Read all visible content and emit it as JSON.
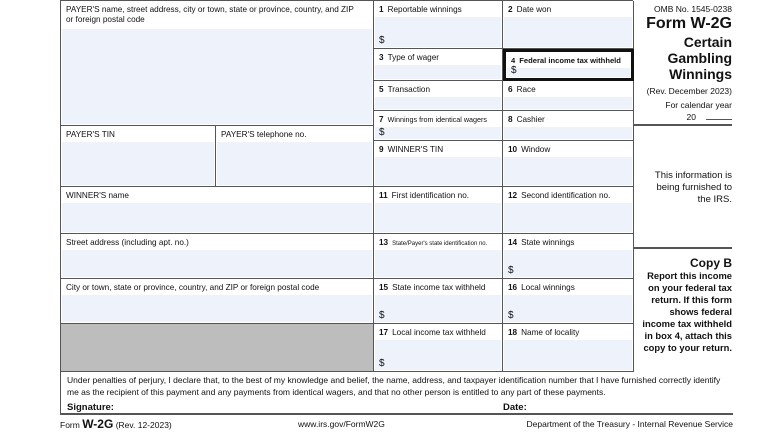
{
  "payer": {
    "name_label": "PAYER'S name, street address, city or town, state or province, country, and ZIP or foreign postal code",
    "tin_label": "PAYER'S TIN",
    "phone_label": "PAYER'S telephone no."
  },
  "winner": {
    "name_label": "WINNER'S name",
    "street_label": "Street address (including apt. no.)",
    "city_label": "City or town, state or province, country, and ZIP or foreign postal code"
  },
  "boxes": [
    {
      "num": "1",
      "label": "Reportable winnings",
      "dollar": "$"
    },
    {
      "num": "2",
      "label": "Date won"
    },
    {
      "num": "3",
      "label": "Type of wager"
    },
    {
      "num": "4",
      "label": "Federal income tax withheld",
      "dollar": "$"
    },
    {
      "num": "5",
      "label": "Transaction"
    },
    {
      "num": "6",
      "label": "Race"
    },
    {
      "num": "7",
      "label": "Winnings from identical wagers",
      "dollar": "$"
    },
    {
      "num": "8",
      "label": "Cashier"
    },
    {
      "num": "9",
      "label": "WINNER'S TIN"
    },
    {
      "num": "10",
      "label": "Window"
    },
    {
      "num": "11",
      "label": "First identification no."
    },
    {
      "num": "12",
      "label": "Second identification no."
    },
    {
      "num": "13",
      "label": "State/Payer's state identification no."
    },
    {
      "num": "14",
      "label": "State winnings",
      "dollar": "$"
    },
    {
      "num": "15",
      "label": "State income tax withheld",
      "dollar": "$"
    },
    {
      "num": "16",
      "label": "Local winnings",
      "dollar": "$"
    },
    {
      "num": "17",
      "label": "Local income tax withheld",
      "dollar": "$"
    },
    {
      "num": "18",
      "label": "Name of locality"
    }
  ],
  "header": {
    "omb": "OMB No. 1545-0238",
    "form": "Form W-2G",
    "title": "Certain Gambling Winnings",
    "rev": "(Rev. December 2023)",
    "cal_year": "For calendar year",
    "year_prefix": "20"
  },
  "irs_note": "This information is being furnished to the IRS.",
  "copy": {
    "title": "Copy B",
    "text": "Report this income on your federal tax return. If this form shows federal income tax withheld in box 4, attach this copy to your return."
  },
  "perjury": "Under penalties of perjury, I declare that, to the best of my knowledge and belief, the name, address, and taxpayer identification number that I have furnished correctly identify me as the recipient of this payment and any payments from identical wagers, and that no other person is entitled to any part of these payments.",
  "signature_label": "Signature:",
  "date_label": "Date:",
  "footer": {
    "form_word": "Form",
    "form_name": "W-2G",
    "rev": "(Rev. 12-2023)",
    "url": "www.irs.gov/FormW2G",
    "dept": "Department of the Treasury - Internal Revenue Service"
  }
}
